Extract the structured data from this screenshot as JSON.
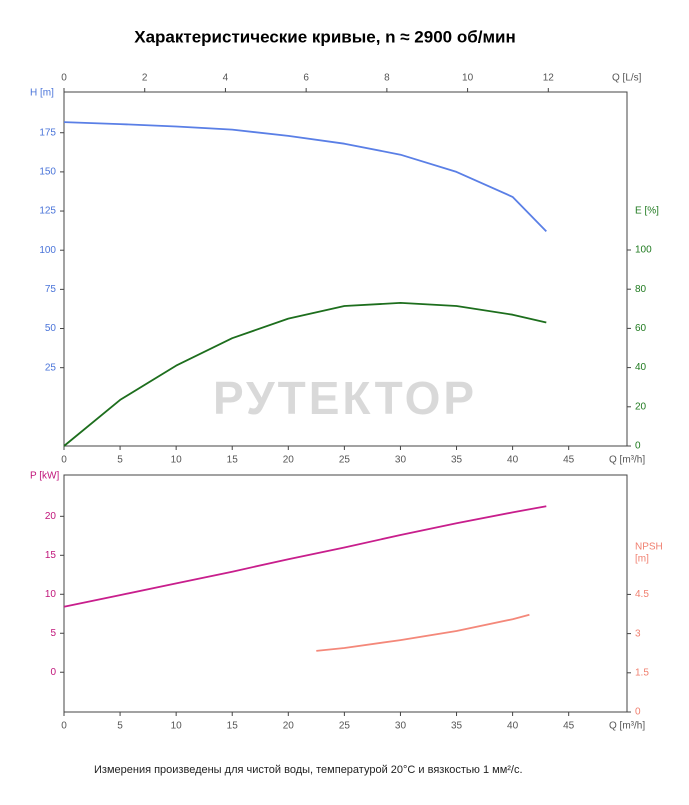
{
  "title": "Характеристические кривые, n ≈ 2900 об/мин",
  "footer": "Измерения произведены для чистой воды, температурой 20°C и вязкостью 1 мм²/с.",
  "watermark": "РУТЕКТОР",
  "chart_data": [
    {
      "type": "line",
      "xlabel": "Q [m³/h]",
      "xlim": [
        0,
        50.2
      ],
      "xticks": [
        0,
        5,
        10,
        15,
        20,
        25,
        30,
        35,
        40,
        45
      ],
      "x2label": "Q [L/s]",
      "x2lim": [
        0,
        13.95
      ],
      "x2ticks": [
        0,
        2,
        4,
        6,
        8,
        10,
        12
      ],
      "ylabel": "H [m]",
      "ylim": [
        -25,
        201
      ],
      "yticks": [
        25,
        50,
        75,
        100,
        125,
        150,
        175
      ],
      "ycolor": "#4a74d9",
      "y2label": "E [%]",
      "y2lim": [
        0,
        180.6
      ],
      "y2ticks": [
        0,
        20,
        40,
        60,
        80,
        100
      ],
      "y2color": "#1f7a1f",
      "series": [
        {
          "color": "#5a7fe6",
          "axis": "y",
          "x": [
            0,
            5,
            10,
            15,
            20,
            25,
            30,
            35,
            40,
            43
          ],
          "values": [
            181.8,
            180.5,
            179,
            177,
            173,
            168,
            161,
            150,
            134,
            112
          ]
        },
        {
          "color": "#1d6e1d",
          "axis": "y2",
          "x": [
            0,
            5,
            10,
            15,
            20,
            25,
            30,
            35,
            40,
            43
          ],
          "values": [
            0,
            23.5,
            41,
            55,
            65,
            71.4,
            73,
            71.4,
            67,
            63
          ]
        }
      ]
    },
    {
      "type": "line",
      "xlabel": "Q [m³/h]",
      "xlim": [
        0,
        50.2
      ],
      "xticks": [
        0,
        5,
        10,
        15,
        20,
        25,
        30,
        35,
        40,
        45
      ],
      "ylabel": "P [kW]",
      "ylim": [
        -5.1,
        25.3
      ],
      "yticks": [
        0,
        5,
        10,
        15,
        20
      ],
      "ycolor": "#c0157a",
      "y2label_lines": [
        "NPSH",
        "[m]"
      ],
      "y2lim": [
        0,
        9.07
      ],
      "y2ticks": [
        0,
        1.5,
        3,
        4.5
      ],
      "y2color": "#f08070",
      "series": [
        {
          "color": "#c81e8c",
          "axis": "y",
          "x": [
            0,
            5,
            10,
            15,
            20,
            25,
            30,
            35,
            40,
            43
          ],
          "values": [
            8.4,
            9.9,
            11.4,
            12.9,
            14.5,
            16,
            17.6,
            19.1,
            20.5,
            21.3
          ]
        },
        {
          "color": "#f4887a",
          "axis": "y2",
          "x": [
            22.5,
            25,
            30,
            35,
            40,
            41.5
          ],
          "values": [
            2.34,
            2.45,
            2.75,
            3.1,
            3.55,
            3.72
          ]
        }
      ]
    }
  ]
}
